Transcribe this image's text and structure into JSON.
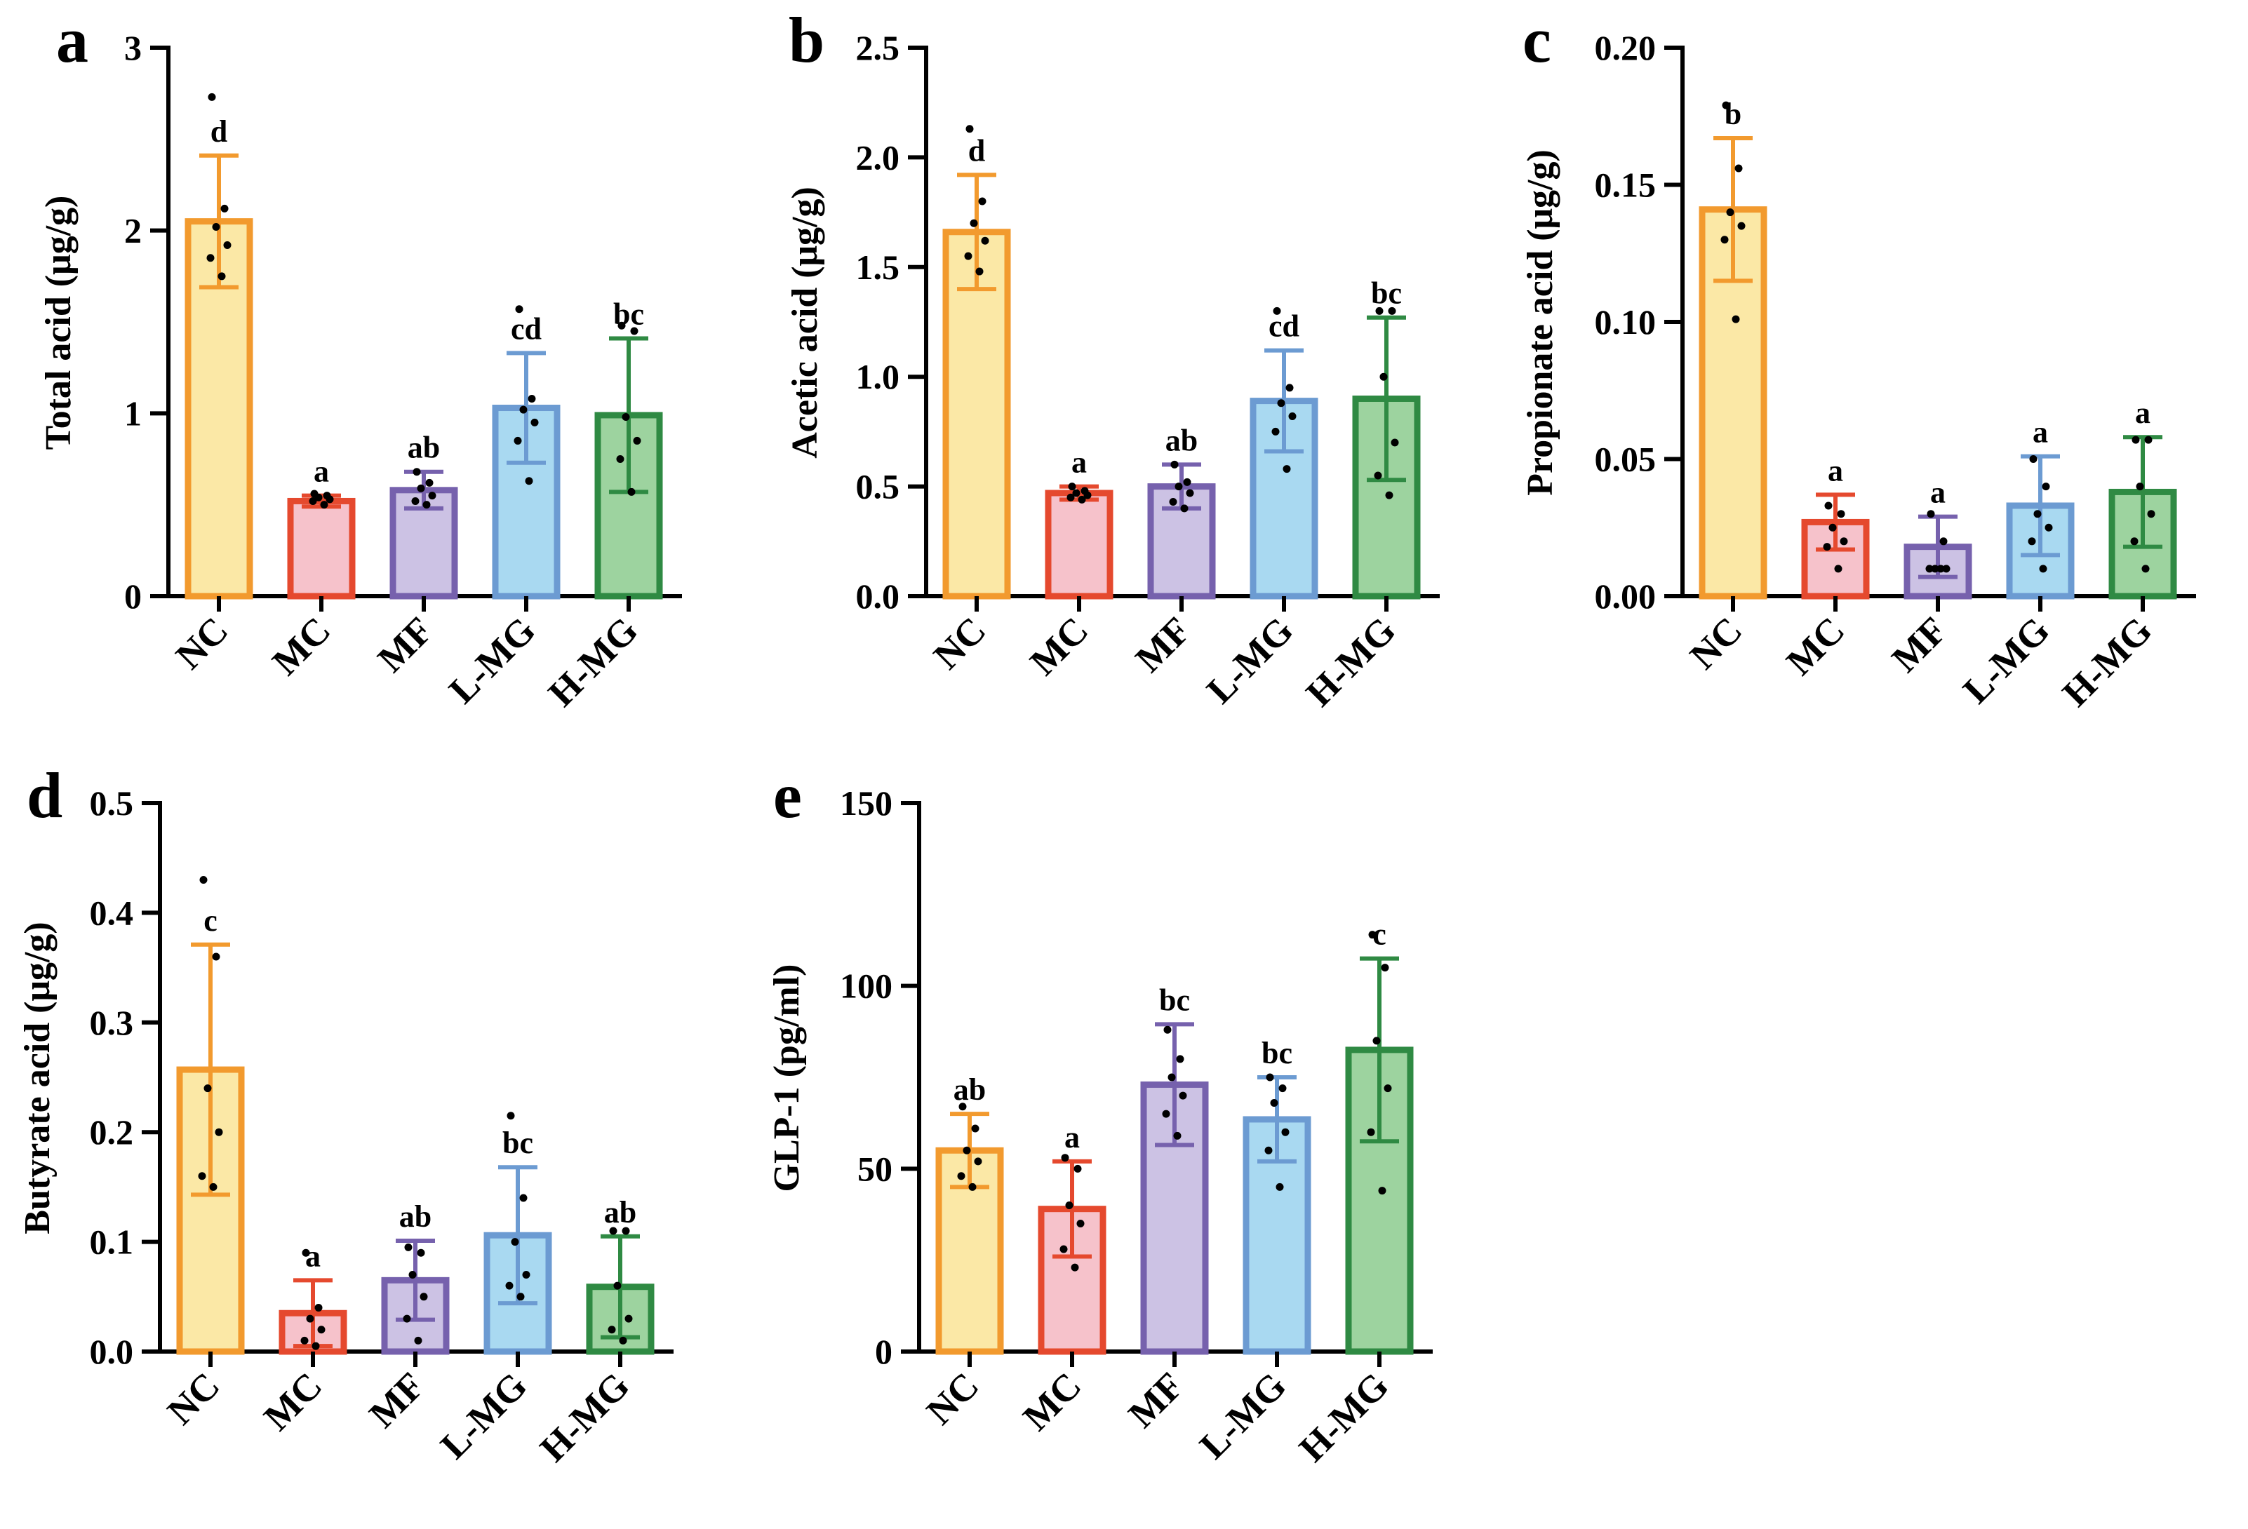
{
  "figure": {
    "colors": {
      "NC": {
        "fill": "#FBE8A6",
        "stroke": "#F29A2E"
      },
      "MC": {
        "fill": "#F6C2CB",
        "stroke": "#E5492E"
      },
      "MF": {
        "fill": "#CCC2E4",
        "stroke": "#7661AD"
      },
      "L-MG": {
        "fill": "#A9D9F1",
        "stroke": "#6C9BD2"
      },
      "H-MG": {
        "fill": "#9DD39F",
        "stroke": "#2F8A43"
      }
    }
  },
  "chart_data": [
    {
      "panel": "a",
      "type": "bar",
      "ylabel": "Total acid (μg/g)",
      "ylim": [
        0,
        3
      ],
      "yticks": [
        0,
        1,
        2,
        3
      ],
      "tick_labels": [
        "0",
        "1",
        "2",
        "3"
      ],
      "categories": [
        "NC",
        "MC",
        "MF",
        "L-MG",
        "H-MG"
      ],
      "values": [
        2.05,
        0.52,
        0.58,
        1.03,
        0.99
      ],
      "errors": [
        0.36,
        0.03,
        0.1,
        0.3,
        0.42
      ],
      "significance": [
        "d",
        "a",
        "ab",
        "cd",
        "bc"
      ],
      "points": [
        [
          2.73,
          2.12,
          2.02,
          1.92,
          1.85,
          1.75
        ],
        [
          0.56,
          0.55,
          0.54,
          0.53,
          0.52,
          0.5
        ],
        [
          0.68,
          0.62,
          0.59,
          0.55,
          0.52,
          0.5
        ],
        [
          1.57,
          1.08,
          1.02,
          0.95,
          0.85,
          0.63
        ],
        [
          1.48,
          1.45,
          0.98,
          0.85,
          0.75,
          0.57
        ]
      ]
    },
    {
      "panel": "b",
      "type": "bar",
      "ylabel": "Acetic acid (μg/g)",
      "ylim": [
        0,
        2.5
      ],
      "yticks": [
        0,
        0.5,
        1,
        1.5,
        2,
        2.5
      ],
      "tick_labels": [
        "0.0",
        "0.5",
        "1.0",
        "1.5",
        "2.0",
        "2.5"
      ],
      "categories": [
        "NC",
        "MC",
        "MF",
        "L-MG",
        "H-MG"
      ],
      "values": [
        1.66,
        0.47,
        0.5,
        0.89,
        0.9
      ],
      "errors": [
        0.26,
        0.03,
        0.1,
        0.23,
        0.37
      ],
      "significance": [
        "d",
        "a",
        "ab",
        "cd",
        "bc"
      ],
      "points": [
        [
          2.13,
          1.8,
          1.7,
          1.62,
          1.55,
          1.48
        ],
        [
          0.5,
          0.48,
          0.47,
          0.46,
          0.45,
          0.44
        ],
        [
          0.6,
          0.52,
          0.5,
          0.47,
          0.43,
          0.4
        ],
        [
          1.3,
          0.95,
          0.88,
          0.82,
          0.75,
          0.58
        ],
        [
          1.3,
          1.3,
          1.0,
          0.7,
          0.55,
          0.46
        ]
      ]
    },
    {
      "panel": "c",
      "type": "bar",
      "ylabel": "Propionate acid (μg/g)",
      "ylim": [
        0,
        0.2
      ],
      "yticks": [
        0,
        0.05,
        0.1,
        0.15,
        0.2
      ],
      "tick_labels": [
        "0.00",
        "0.05",
        "0.10",
        "0.15",
        "0.20"
      ],
      "categories": [
        "NC",
        "MC",
        "MF",
        "L-MG",
        "H-MG"
      ],
      "values": [
        0.141,
        0.027,
        0.018,
        0.033,
        0.038
      ],
      "errors": [
        0.026,
        0.01,
        0.011,
        0.018,
        0.02
      ],
      "significance": [
        "b",
        "a",
        "a",
        "a",
        "a"
      ],
      "points": [
        [
          0.179,
          0.156,
          0.14,
          0.135,
          0.13,
          0.101
        ],
        [
          0.033,
          0.03,
          0.025,
          0.02,
          0.018,
          0.01
        ],
        [
          0.03,
          0.02,
          0.01,
          0.01,
          0.01,
          0.01
        ],
        [
          0.05,
          0.04,
          0.03,
          0.025,
          0.02,
          0.01
        ],
        [
          0.057,
          0.057,
          0.04,
          0.03,
          0.02,
          0.01
        ]
      ]
    },
    {
      "panel": "d",
      "type": "bar",
      "ylabel": "Butyrate acid (μg/g)",
      "ylim": [
        0,
        0.5
      ],
      "yticks": [
        0,
        0.1,
        0.2,
        0.3,
        0.4,
        0.5
      ],
      "tick_labels": [
        "0.0",
        "0.1",
        "0.2",
        "0.3",
        "0.4",
        "0.5"
      ],
      "categories": [
        "NC",
        "MC",
        "MF",
        "L-MG",
        "H-MG"
      ],
      "values": [
        0.257,
        0.035,
        0.065,
        0.106,
        0.059
      ],
      "errors": [
        0.114,
        0.03,
        0.036,
        0.062,
        0.046
      ],
      "significance": [
        "c",
        "a",
        "ab",
        "bc",
        "ab"
      ],
      "points": [
        [
          0.43,
          0.36,
          0.24,
          0.2,
          0.16,
          0.15
        ],
        [
          0.09,
          0.04,
          0.03,
          0.02,
          0.01,
          0.005
        ],
        [
          0.095,
          0.09,
          0.07,
          0.05,
          0.03,
          0.01
        ],
        [
          0.215,
          0.14,
          0.1,
          0.07,
          0.06,
          0.05
        ],
        [
          0.11,
          0.11,
          0.06,
          0.03,
          0.02,
          0.01
        ]
      ]
    },
    {
      "panel": "e",
      "type": "bar",
      "ylabel": "GLP-1 (pg/ml)",
      "ylim": [
        0,
        150
      ],
      "yticks": [
        0,
        50,
        100,
        150
      ],
      "tick_labels": [
        "0",
        "50",
        "100",
        "150"
      ],
      "categories": [
        "NC",
        "MC",
        "MF",
        "L-MG",
        "H-MG"
      ],
      "values": [
        55,
        39,
        73,
        63.5,
        82.5
      ],
      "errors": [
        10,
        13,
        16.5,
        11.5,
        25
      ],
      "significance": [
        "ab",
        "a",
        "bc",
        "bc",
        "c"
      ],
      "points": [
        [
          67,
          61,
          55,
          52,
          48,
          45
        ],
        [
          53,
          50,
          40,
          35,
          28,
          23
        ],
        [
          88,
          80,
          75,
          70,
          65,
          59
        ],
        [
          75,
          72,
          68,
          60,
          55,
          45
        ],
        [
          114,
          105,
          85,
          72,
          60,
          44
        ]
      ]
    }
  ]
}
